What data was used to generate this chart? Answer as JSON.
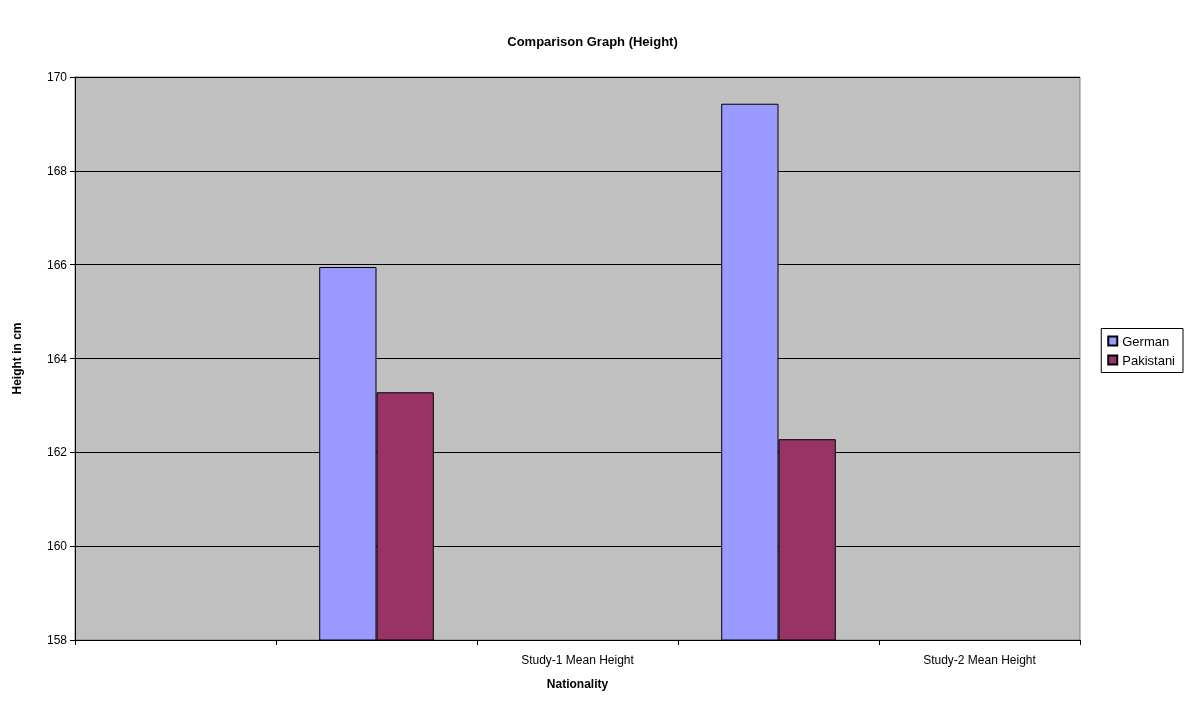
{
  "chart_data": {
    "type": "bar",
    "title": "Comparison Graph (Height)",
    "xlabel": "Nationality",
    "ylabel": "Height in cm",
    "categories": [
      null,
      null,
      "Study-1 Mean Height",
      null,
      "Study-2 Mean Height"
    ],
    "series": [
      {
        "name": "German",
        "color": "#9999ff",
        "values": [
          null,
          165.95,
          null,
          169.43,
          null
        ]
      },
      {
        "name": "Pakistani",
        "color": "#993366",
        "values": [
          null,
          163.28,
          null,
          162.28,
          null
        ]
      }
    ],
    "ylim": [
      158,
      170
    ],
    "yticks": [
      158,
      160,
      162,
      164,
      166,
      168,
      170
    ],
    "grid": "y",
    "legend": "right"
  }
}
